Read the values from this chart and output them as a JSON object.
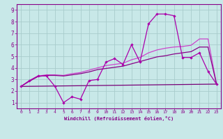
{
  "xlabel": "Windchill (Refroidissement éolien,°C)",
  "xlim": [
    -0.5,
    23.5
  ],
  "ylim": [
    0.5,
    9.5
  ],
  "yticks": [
    1,
    2,
    3,
    4,
    5,
    6,
    7,
    8,
    9
  ],
  "xticks": [
    0,
    1,
    2,
    3,
    4,
    5,
    6,
    7,
    8,
    9,
    10,
    11,
    12,
    13,
    14,
    15,
    16,
    17,
    18,
    19,
    20,
    21,
    22,
    23
  ],
  "bg_color": "#c8e8e8",
  "grid_color": "#a8cccc",
  "spine_color": "#880088",
  "tick_color": "#880088",
  "line1_x": [
    0,
    1,
    2,
    3,
    4,
    5,
    6,
    7,
    8,
    9,
    10,
    11,
    12,
    13,
    14,
    15,
    16,
    17,
    18,
    19,
    20,
    21,
    22,
    23
  ],
  "line1_y": [
    2.4,
    2.9,
    3.3,
    3.3,
    2.4,
    1.0,
    1.5,
    1.3,
    2.9,
    3.0,
    4.5,
    4.8,
    4.3,
    6.0,
    4.5,
    7.8,
    8.65,
    8.65,
    8.5,
    4.9,
    4.9,
    5.3,
    3.7,
    2.6
  ],
  "line1_color": "#aa00aa",
  "line2_x": [
    0,
    1,
    2,
    3,
    4,
    5,
    6,
    7,
    8,
    9,
    10,
    11,
    12,
    13,
    14,
    15,
    16,
    17,
    18,
    19,
    20,
    21,
    22,
    23
  ],
  "line2_y": [
    2.4,
    2.9,
    3.3,
    3.4,
    3.4,
    3.35,
    3.5,
    3.6,
    3.8,
    4.0,
    4.2,
    4.3,
    4.4,
    4.7,
    4.9,
    5.3,
    5.55,
    5.7,
    5.8,
    5.85,
    5.95,
    6.5,
    6.5,
    2.6
  ],
  "line2_color": "#cc44cc",
  "line3_x": [
    0,
    1,
    2,
    3,
    4,
    5,
    6,
    7,
    8,
    9,
    10,
    11,
    12,
    13,
    14,
    15,
    16,
    17,
    18,
    19,
    20,
    21,
    22,
    23
  ],
  "line3_y": [
    2.4,
    2.85,
    3.25,
    3.35,
    3.35,
    3.3,
    3.4,
    3.5,
    3.65,
    3.85,
    3.95,
    4.05,
    4.15,
    4.35,
    4.55,
    4.75,
    4.95,
    5.05,
    5.2,
    5.3,
    5.4,
    5.8,
    5.8,
    2.6
  ],
  "line3_color": "#880088",
  "line4_x": [
    0,
    23
  ],
  "line4_y": [
    2.4,
    2.6
  ],
  "line4_color": "#770077"
}
